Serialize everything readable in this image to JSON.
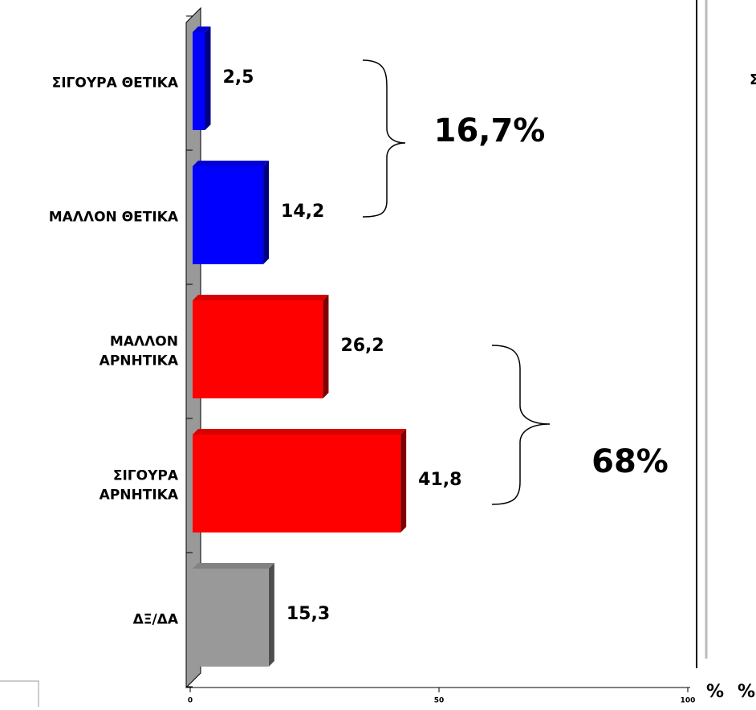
{
  "chart_data": {
    "type": "bar",
    "orientation": "horizontal",
    "categories": [
      "ΣΙΓΟΥΡΑ ΘΕΤΙΚΑ",
      "ΜΑΛΛΟΝ ΘΕΤΙΚΑ",
      "ΜΑΛΛΟΝ\nΑΡΝΗΤΙΚΑ",
      "ΣΙΓΟΥΡΑ\nΑΡΝΗΤΙΚΑ",
      "ΔΞ/ΔΑ"
    ],
    "values": [
      2.5,
      14.2,
      26.2,
      41.8,
      15.3
    ],
    "value_labels": [
      "2,5",
      "14,2",
      "26,2",
      "41,8",
      "15,3"
    ],
    "colors": [
      "#0000ff",
      "#0000ff",
      "#ff0000",
      "#ff0000",
      "#999999"
    ],
    "xlim": [
      0,
      100
    ],
    "xticks": [
      0,
      50,
      100
    ],
    "xlabel": "%",
    "annotations": [
      "16,7%",
      "68%"
    ],
    "fragments": [
      "%",
      "Σ"
    ]
  }
}
